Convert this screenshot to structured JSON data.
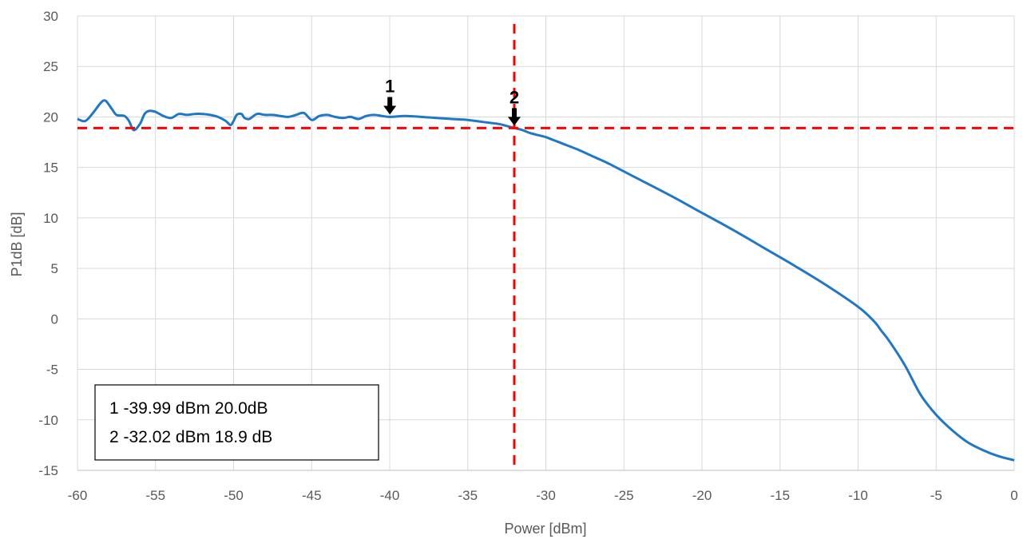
{
  "chart_data": {
    "type": "line",
    "xlabel": "Power [dBm]",
    "ylabel": "P1dB [dB]",
    "xlim": [
      -60,
      0
    ],
    "ylim": [
      -15,
      30
    ],
    "xticks": [
      "-60",
      "-55",
      "-50",
      "-45",
      "-40",
      "-35",
      "-30",
      "-25",
      "-20",
      "-15",
      "-10",
      "-5",
      "0"
    ],
    "yticks": [
      "30",
      "25",
      "20",
      "15",
      "10",
      "5",
      "0",
      "-5",
      "-10",
      "-15"
    ],
    "grid": true,
    "legend": "none",
    "series": [
      {
        "color": "#1f77c8",
        "x": [
          -60,
          -59.5,
          -59,
          -58.5,
          -58.2,
          -57.8,
          -57.5,
          -57,
          -56.7,
          -56.4,
          -56,
          -55.7,
          -55.4,
          -55,
          -54.5,
          -54,
          -53.5,
          -53,
          -52.5,
          -52,
          -51.5,
          -51,
          -50.5,
          -50.2,
          -50,
          -49.8,
          -49.5,
          -49.3,
          -49,
          -48.5,
          -48,
          -47.5,
          -47,
          -46.5,
          -46,
          -45.5,
          -45,
          -44.5,
          -44,
          -43.5,
          -43,
          -42.5,
          -42,
          -41.5,
          -41,
          -40.5,
          -40,
          -39,
          -38,
          -37,
          -36,
          -35,
          -34,
          -33,
          -32.5,
          -32,
          -31.5,
          -31,
          -30.5,
          -30,
          -29.5,
          -29,
          -28,
          -27,
          -26,
          -25,
          -24,
          -22,
          -20,
          -18,
          -16,
          -14,
          -12,
          -10,
          -9,
          -8.5,
          -8,
          -7,
          -6,
          -5,
          -4,
          -3,
          -2,
          -1,
          0
        ],
        "values": [
          19.8,
          19.6,
          20.4,
          21.4,
          21.6,
          20.8,
          20.2,
          20.1,
          19.6,
          18.7,
          19.3,
          20.3,
          20.6,
          20.5,
          20.1,
          19.9,
          20.3,
          20.2,
          20.3,
          20.3,
          20.2,
          20.0,
          19.6,
          19.2,
          19.6,
          20.2,
          20.3,
          19.9,
          19.8,
          20.3,
          20.2,
          20.2,
          20.1,
          20.0,
          20.2,
          20.4,
          19.7,
          20.1,
          20.2,
          20.0,
          19.9,
          20.0,
          19.8,
          20.1,
          20.2,
          20.1,
          20.0,
          20.1,
          20.0,
          19.9,
          19.8,
          19.7,
          19.5,
          19.3,
          19.1,
          18.9,
          18.7,
          18.4,
          18.2,
          18.0,
          17.7,
          17.4,
          16.8,
          16.1,
          15.4,
          14.6,
          13.8,
          12.2,
          10.5,
          8.8,
          7.0,
          5.2,
          3.3,
          1.2,
          -0.2,
          -1.2,
          -2.2,
          -4.6,
          -7.5,
          -9.5,
          -11.0,
          -12.2,
          -13.0,
          -13.6,
          -14.0
        ]
      }
    ],
    "reference_lines": [
      {
        "orientation": "horizontal",
        "value": 18.9,
        "color": "#ff0000",
        "style": "dashed"
      },
      {
        "orientation": "vertical",
        "value": -32.02,
        "color": "#ff0000",
        "style": "dashed"
      }
    ],
    "markers": [
      {
        "label": "1",
        "x": -39.99,
        "y": 20.0
      },
      {
        "label": "2",
        "x": -32.02,
        "y": 18.9
      }
    ],
    "annotation_box": [
      "1 -39.99 dBm 20.0dB",
      "2 -32.02 dBm 18.9 dB"
    ]
  }
}
